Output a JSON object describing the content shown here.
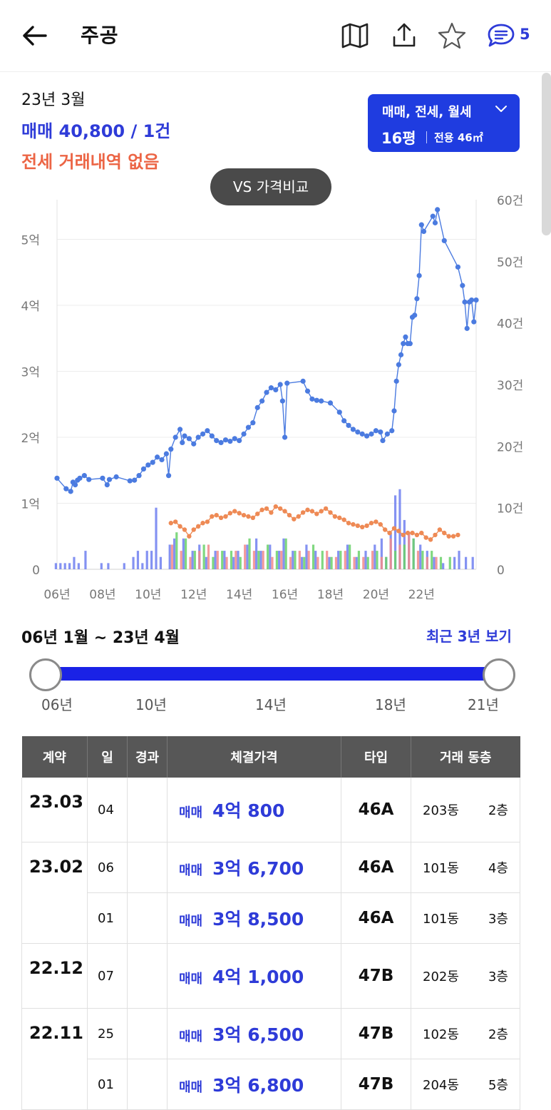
{
  "header": {
    "title": "주공",
    "comment_count": "5"
  },
  "summary": {
    "month": "23년 3월",
    "sale": "매매 40,800 / 1건",
    "jeonse": "전세 거래내역 없음"
  },
  "filter": {
    "types": "매매, 전세, 월세",
    "pyeong": "16평",
    "area": "전용 46㎡"
  },
  "compare_button": "VS 가격비교",
  "range": {
    "label": "06년 1월 ~ 23년 4월",
    "recent_link": "최근 3년 보기",
    "slider_ticks": [
      "06년",
      "10년",
      "14년",
      "18년",
      "21년"
    ],
    "start_position": 0,
    "end_position": 1
  },
  "colors": {
    "sale_line": "#4b7be0",
    "jeonse_line": "#ee8a55",
    "sale_bar": "#6f7ff0",
    "jeonse_bar": "#f28a8a",
    "monthly_bar": "#6ad16a",
    "accent": "#2e3bd8",
    "jeonse_text": "#ec6545"
  },
  "chart_data": {
    "type": "line",
    "x_ticks": [
      "06년",
      "08년",
      "10년",
      "12년",
      "14년",
      "16년",
      "18년",
      "20년",
      "22년"
    ],
    "y_left_ticks": [
      "0",
      "1억",
      "2억",
      "3억",
      "4억",
      "5억"
    ],
    "y_right_ticks": [
      "0",
      "10건",
      "20건",
      "30건",
      "40건",
      "50건",
      "60건"
    ],
    "y_left_range_eok": [
      0,
      5.6
    ],
    "y_right_range_count": [
      0,
      60
    ],
    "series": [
      {
        "kind": "sale_price",
        "points": [
          [
            2006.0,
            1.38
          ],
          [
            2006.4,
            1.22
          ],
          [
            2006.6,
            1.18
          ],
          [
            2006.7,
            1.32
          ],
          [
            2006.8,
            1.28
          ],
          [
            2006.9,
            1.35
          ],
          [
            2007.0,
            1.38
          ],
          [
            2007.2,
            1.42
          ],
          [
            2007.4,
            1.36
          ],
          [
            2008.0,
            1.38
          ],
          [
            2008.2,
            1.28
          ],
          [
            2008.3,
            1.36
          ],
          [
            2008.6,
            1.4
          ],
          [
            2009.2,
            1.34
          ],
          [
            2009.4,
            1.35
          ],
          [
            2009.6,
            1.42
          ],
          [
            2009.8,
            1.52
          ],
          [
            2010.0,
            1.58
          ],
          [
            2010.2,
            1.62
          ],
          [
            2010.4,
            1.7
          ],
          [
            2010.6,
            1.66
          ],
          [
            2010.8,
            1.75
          ],
          [
            2010.9,
            1.42
          ],
          [
            2011.0,
            1.82
          ],
          [
            2011.2,
            2.0
          ],
          [
            2011.4,
            2.12
          ],
          [
            2011.5,
            1.92
          ],
          [
            2011.6,
            2.02
          ],
          [
            2011.8,
            1.98
          ],
          [
            2012.0,
            1.9
          ],
          [
            2012.2,
            2.0
          ],
          [
            2012.4,
            2.05
          ],
          [
            2012.6,
            2.1
          ],
          [
            2012.8,
            2.02
          ],
          [
            2013.0,
            1.95
          ],
          [
            2013.2,
            1.92
          ],
          [
            2013.4,
            1.96
          ],
          [
            2013.6,
            1.94
          ],
          [
            2013.8,
            1.98
          ],
          [
            2014.0,
            1.95
          ],
          [
            2014.2,
            2.05
          ],
          [
            2014.4,
            2.15
          ],
          [
            2014.6,
            2.22
          ],
          [
            2014.8,
            2.45
          ],
          [
            2015.0,
            2.55
          ],
          [
            2015.2,
            2.68
          ],
          [
            2015.4,
            2.75
          ],
          [
            2015.6,
            2.72
          ],
          [
            2015.8,
            2.8
          ],
          [
            2015.9,
            2.55
          ],
          [
            2016.0,
            2.0
          ],
          [
            2016.1,
            2.82
          ],
          [
            2016.8,
            2.85
          ],
          [
            2017.0,
            2.7
          ],
          [
            2017.2,
            2.58
          ],
          [
            2017.4,
            2.56
          ],
          [
            2017.6,
            2.55
          ],
          [
            2018.0,
            2.52
          ],
          [
            2018.4,
            2.38
          ],
          [
            2018.6,
            2.25
          ],
          [
            2018.8,
            2.18
          ],
          [
            2019.0,
            2.12
          ],
          [
            2019.2,
            2.08
          ],
          [
            2019.4,
            2.05
          ],
          [
            2019.6,
            2.02
          ],
          [
            2019.8,
            2.05
          ],
          [
            2020.0,
            2.1
          ],
          [
            2020.2,
            2.08
          ],
          [
            2020.3,
            1.95
          ],
          [
            2020.5,
            2.05
          ],
          [
            2020.7,
            2.1
          ],
          [
            2020.8,
            2.4
          ],
          [
            2020.9,
            2.85
          ],
          [
            2021.0,
            3.1
          ],
          [
            2021.1,
            3.25
          ],
          [
            2021.2,
            3.42
          ],
          [
            2021.3,
            3.52
          ],
          [
            2021.4,
            3.42
          ],
          [
            2021.5,
            3.42
          ],
          [
            2021.6,
            3.82
          ],
          [
            2021.7,
            3.85
          ],
          [
            2021.8,
            4.1
          ],
          [
            2021.9,
            4.45
          ],
          [
            2022.0,
            5.22
          ],
          [
            2022.1,
            5.12
          ],
          [
            2022.5,
            5.35
          ],
          [
            2022.6,
            5.25
          ],
          [
            2022.7,
            5.45
          ],
          [
            2023.0,
            4.98
          ],
          [
            2023.6,
            4.58
          ],
          [
            2023.8,
            4.3
          ],
          [
            2023.9,
            4.05
          ],
          [
            2024.0,
            3.65
          ],
          [
            2024.1,
            4.05
          ],
          [
            2024.2,
            4.08
          ],
          [
            2024.3,
            3.75
          ],
          [
            2024.4,
            4.08
          ]
        ]
      },
      {
        "kind": "jeonse_price",
        "points": [
          [
            2011.0,
            0.7
          ],
          [
            2011.2,
            0.72
          ],
          [
            2011.4,
            0.65
          ],
          [
            2011.6,
            0.6
          ],
          [
            2011.8,
            0.5
          ],
          [
            2012.0,
            0.6
          ],
          [
            2012.2,
            0.65
          ],
          [
            2012.4,
            0.7
          ],
          [
            2012.6,
            0.72
          ],
          [
            2012.8,
            0.8
          ],
          [
            2013.0,
            0.82
          ],
          [
            2013.2,
            0.78
          ],
          [
            2013.4,
            0.8
          ],
          [
            2013.6,
            0.85
          ],
          [
            2013.8,
            0.88
          ],
          [
            2014.0,
            0.85
          ],
          [
            2014.2,
            0.82
          ],
          [
            2014.4,
            0.8
          ],
          [
            2014.6,
            0.78
          ],
          [
            2014.8,
            0.84
          ],
          [
            2015.0,
            0.9
          ],
          [
            2015.2,
            0.92
          ],
          [
            2015.4,
            0.86
          ],
          [
            2015.6,
            0.95
          ],
          [
            2015.8,
            0.92
          ],
          [
            2016.0,
            0.88
          ],
          [
            2016.2,
            0.82
          ],
          [
            2016.4,
            0.76
          ],
          [
            2016.6,
            0.8
          ],
          [
            2016.8,
            0.86
          ],
          [
            2017.0,
            0.9
          ],
          [
            2017.2,
            0.88
          ],
          [
            2017.4,
            0.84
          ],
          [
            2017.6,
            0.88
          ],
          [
            2017.8,
            0.92
          ],
          [
            2018.0,
            0.86
          ],
          [
            2018.2,
            0.8
          ],
          [
            2018.4,
            0.78
          ],
          [
            2018.6,
            0.75
          ],
          [
            2018.8,
            0.7
          ],
          [
            2019.0,
            0.68
          ],
          [
            2019.2,
            0.66
          ],
          [
            2019.4,
            0.64
          ],
          [
            2019.6,
            0.66
          ],
          [
            2019.8,
            0.7
          ],
          [
            2020.0,
            0.72
          ],
          [
            2020.2,
            0.68
          ],
          [
            2020.4,
            0.6
          ],
          [
            2020.6,
            0.55
          ],
          [
            2020.8,
            0.62
          ],
          [
            2021.0,
            0.58
          ],
          [
            2021.2,
            0.52
          ],
          [
            2021.4,
            0.55
          ],
          [
            2021.6,
            0.55
          ],
          [
            2021.8,
            0.52
          ],
          [
            2022.0,
            0.55
          ],
          [
            2022.2,
            0.48
          ],
          [
            2022.4,
            0.45
          ],
          [
            2022.6,
            0.52
          ],
          [
            2022.8,
            0.6
          ],
          [
            2023.0,
            0.55
          ],
          [
            2023.2,
            0.5
          ],
          [
            2023.4,
            0.5
          ],
          [
            2023.6,
            0.52
          ]
        ]
      }
    ],
    "volume": {
      "sale_counts": [
        [
          2006.0,
          1
        ],
        [
          2006.2,
          1
        ],
        [
          2006.4,
          1
        ],
        [
          2006.6,
          1
        ],
        [
          2006.8,
          2
        ],
        [
          2007.0,
          1
        ],
        [
          2007.3,
          3
        ],
        [
          2008.0,
          1
        ],
        [
          2008.3,
          1
        ],
        [
          2009.0,
          1
        ],
        [
          2009.4,
          2
        ],
        [
          2009.6,
          3
        ],
        [
          2009.8,
          1
        ],
        [
          2010.0,
          3
        ],
        [
          2010.2,
          3
        ],
        [
          2010.4,
          10
        ],
        [
          2010.6,
          2
        ],
        [
          2011.0,
          4
        ],
        [
          2011.2,
          5
        ],
        [
          2011.6,
          5
        ],
        [
          2012.0,
          3
        ],
        [
          2012.3,
          4
        ],
        [
          2012.6,
          2
        ],
        [
          2013.0,
          3
        ],
        [
          2013.4,
          3
        ],
        [
          2013.8,
          2
        ],
        [
          2014.0,
          3
        ],
        [
          2014.4,
          4
        ],
        [
          2014.8,
          5
        ],
        [
          2015.0,
          3
        ],
        [
          2015.4,
          4
        ],
        [
          2015.8,
          3
        ],
        [
          2016.0,
          5
        ],
        [
          2016.4,
          3
        ],
        [
          2016.8,
          2
        ],
        [
          2017.0,
          4
        ],
        [
          2017.4,
          3
        ],
        [
          2018.0,
          2
        ],
        [
          2018.4,
          3
        ],
        [
          2018.8,
          4
        ],
        [
          2019.2,
          2
        ],
        [
          2019.6,
          3
        ],
        [
          2020.0,
          4
        ],
        [
          2020.3,
          5
        ],
        [
          2020.5,
          2
        ],
        [
          2020.7,
          6
        ],
        [
          2020.9,
          12
        ],
        [
          2021.1,
          13
        ],
        [
          2021.3,
          8
        ],
        [
          2021.5,
          6
        ],
        [
          2021.7,
          5
        ],
        [
          2022.0,
          4
        ],
        [
          2022.3,
          3
        ],
        [
          2022.6,
          2
        ],
        [
          2023.0,
          1
        ],
        [
          2023.5,
          2
        ],
        [
          2023.7,
          3
        ],
        [
          2024.0,
          2
        ],
        [
          2024.3,
          2
        ]
      ],
      "jeonse_counts": [
        [
          2011.0,
          4
        ],
        [
          2011.4,
          3
        ],
        [
          2011.8,
          2
        ],
        [
          2012.2,
          3
        ],
        [
          2012.6,
          4
        ],
        [
          2013.0,
          3
        ],
        [
          2013.4,
          2
        ],
        [
          2013.8,
          3
        ],
        [
          2014.2,
          4
        ],
        [
          2014.6,
          3
        ],
        [
          2015.0,
          3
        ],
        [
          2015.4,
          2
        ],
        [
          2015.8,
          3
        ],
        [
          2016.2,
          2
        ],
        [
          2016.6,
          3
        ],
        [
          2017.0,
          3
        ],
        [
          2017.4,
          2
        ],
        [
          2017.8,
          3
        ],
        [
          2018.2,
          2
        ],
        [
          2018.6,
          3
        ],
        [
          2019.0,
          2
        ],
        [
          2019.4,
          2
        ],
        [
          2019.8,
          3
        ],
        [
          2020.2,
          2
        ],
        [
          2020.6,
          5
        ],
        [
          2021.0,
          4
        ],
        [
          2021.4,
          6
        ],
        [
          2021.8,
          3
        ],
        [
          2022.2,
          2
        ],
        [
          2022.6,
          2
        ]
      ],
      "monthly_counts": [
        [
          2011.1,
          6
        ],
        [
          2011.5,
          5
        ],
        [
          2011.9,
          3
        ],
        [
          2012.3,
          4
        ],
        [
          2012.7,
          2
        ],
        [
          2013.1,
          3
        ],
        [
          2013.5,
          3
        ],
        [
          2013.9,
          2
        ],
        [
          2014.3,
          5
        ],
        [
          2014.7,
          3
        ],
        [
          2015.1,
          4
        ],
        [
          2015.5,
          3
        ],
        [
          2015.9,
          5
        ],
        [
          2016.3,
          3
        ],
        [
          2016.7,
          2
        ],
        [
          2017.1,
          4
        ],
        [
          2017.5,
          3
        ],
        [
          2017.9,
          2
        ],
        [
          2018.3,
          3
        ],
        [
          2018.7,
          4
        ],
        [
          2019.1,
          3
        ],
        [
          2019.5,
          2
        ],
        [
          2019.9,
          3
        ],
        [
          2020.3,
          2
        ],
        [
          2020.7,
          3
        ],
        [
          2021.1,
          4
        ],
        [
          2021.5,
          5
        ],
        [
          2021.9,
          3
        ],
        [
          2022.3,
          3
        ],
        [
          2022.7,
          2
        ],
        [
          2023.1,
          2
        ]
      ]
    }
  },
  "table": {
    "headers": [
      "계약",
      "일",
      "경과",
      "체결가격",
      "타입",
      "거래 동층"
    ],
    "rows": [
      {
        "contract": "23.03",
        "day": "04",
        "elapsed": "",
        "kind": "매매",
        "price": "4억 800",
        "type": "46A",
        "dong": "203동",
        "floor": "2층"
      },
      {
        "contract": "23.02",
        "day": "06",
        "elapsed": "",
        "kind": "매매",
        "price": "3억 6,700",
        "type": "46A",
        "dong": "101동",
        "floor": "4층"
      },
      {
        "contract": "",
        "day": "01",
        "elapsed": "",
        "kind": "매매",
        "price": "3억 8,500",
        "type": "46A",
        "dong": "101동",
        "floor": "3층"
      },
      {
        "contract": "22.12",
        "day": "07",
        "elapsed": "",
        "kind": "매매",
        "price": "4억 1,000",
        "type": "47B",
        "dong": "202동",
        "floor": "3층"
      },
      {
        "contract": "22.11",
        "day": "25",
        "elapsed": "",
        "kind": "매매",
        "price": "3억 6,500",
        "type": "47B",
        "dong": "102동",
        "floor": "2층"
      },
      {
        "contract": "",
        "day": "01",
        "elapsed": "",
        "kind": "매매",
        "price": "3억 6,800",
        "type": "47B",
        "dong": "204동",
        "floor": "5층"
      }
    ]
  }
}
